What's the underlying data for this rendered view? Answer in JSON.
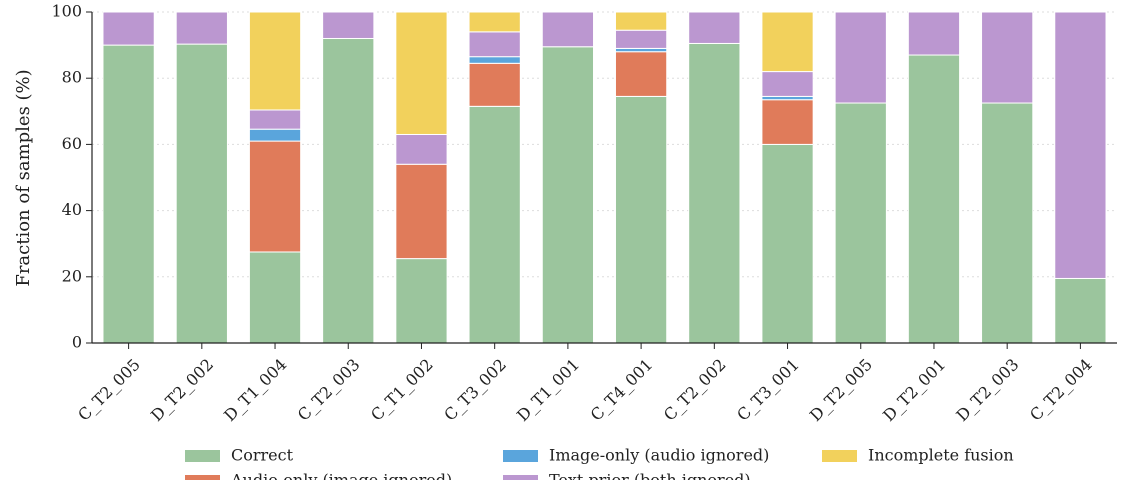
{
  "chart_data": {
    "type": "stacked_bar",
    "ylabel": "Fraction of samples (%)",
    "categories": [
      "C_T2_005",
      "D_T2_002",
      "D_T1_004",
      "C_T2_003",
      "C_T1_002",
      "C_T3_002",
      "D_T1_001",
      "C_T4_001",
      "C_T2_002",
      "C_T3_001",
      "D_T2_005",
      "D_T2_001",
      "D_T2_003",
      "C_T2_004"
    ],
    "series": [
      {
        "name": "Correct",
        "color": "#9bc59d",
        "values": [
          90,
          90.3,
          27.5,
          92,
          25.5,
          71.5,
          89.5,
          74.5,
          90.5,
          60,
          72.5,
          87,
          72.5,
          19.5
        ]
      },
      {
        "name": "Audio-only (image ignored)",
        "color": "#e07b5a",
        "values": [
          0,
          0,
          33.5,
          0,
          28.5,
          13,
          0,
          13.5,
          0,
          13.5,
          0,
          0,
          0,
          0
        ]
      },
      {
        "name": "Image-only (audio ignored)",
        "color": "#5aa5dc",
        "values": [
          0,
          0,
          3.6,
          0,
          0,
          2,
          0,
          1,
          0,
          1,
          0,
          0,
          0,
          0
        ]
      },
      {
        "name": "Text prior (both ignored)",
        "color": "#bb97d0",
        "values": [
          10,
          9.7,
          5.8,
          8,
          9,
          7.5,
          10.5,
          5.5,
          9.5,
          7.5,
          27.5,
          13,
          27.5,
          80.5
        ]
      },
      {
        "name": "Incomplete fusion",
        "color": "#f2d15c",
        "values": [
          0,
          0,
          29.6,
          0,
          37,
          6,
          0,
          5.5,
          0,
          18,
          0,
          0,
          0,
          0
        ]
      }
    ],
    "ylim": [
      0,
      100
    ],
    "yticks": [
      0,
      20,
      40,
      60,
      80,
      100
    ],
    "grid": true,
    "legend": "lower center"
  }
}
